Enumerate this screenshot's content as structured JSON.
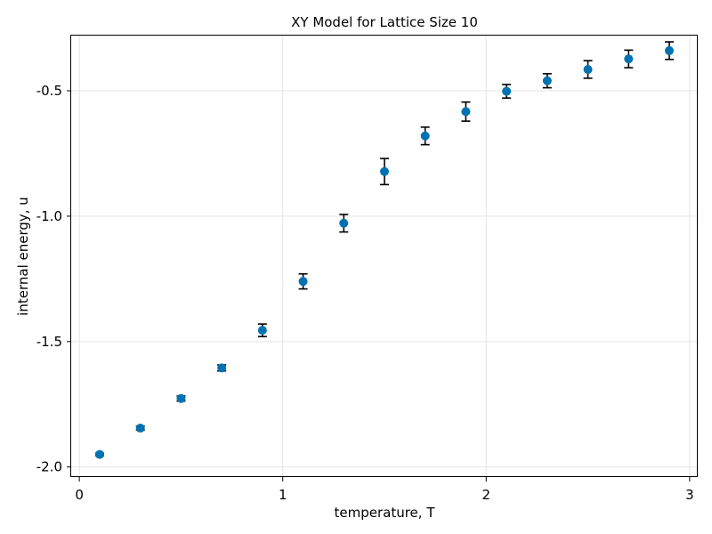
{
  "chart_data": {
    "type": "scatter",
    "title": "XY Model for Lattice Size 10",
    "xlabel": "temperature, T",
    "ylabel": "internal energy, u",
    "xlim": [
      -0.04,
      3.04
    ],
    "ylim": [
      -2.04,
      -0.28
    ],
    "xticks": [
      0,
      1,
      2,
      3
    ],
    "xtick_labels": [
      "0",
      "1",
      "2",
      "3"
    ],
    "yticks": [
      -2.0,
      -1.5,
      -1.0,
      -0.5
    ],
    "ytick_labels": [
      "-2.0",
      "-1.5",
      "-1.0",
      "-0.5"
    ],
    "grid": true,
    "marker_color": "#0072b2",
    "errorbar_color": "#000000",
    "points": [
      {
        "x": 0.1,
        "y": -1.95,
        "err": 0.005
      },
      {
        "x": 0.3,
        "y": -1.845,
        "err": 0.008
      },
      {
        "x": 0.5,
        "y": -1.727,
        "err": 0.01
      },
      {
        "x": 0.7,
        "y": -1.605,
        "err": 0.012
      },
      {
        "x": 0.9,
        "y": -1.455,
        "err": 0.025
      },
      {
        "x": 1.1,
        "y": -1.26,
        "err": 0.03
      },
      {
        "x": 1.3,
        "y": -1.028,
        "err": 0.035
      },
      {
        "x": 1.5,
        "y": -0.822,
        "err": 0.052
      },
      {
        "x": 1.7,
        "y": -0.68,
        "err": 0.035
      },
      {
        "x": 1.9,
        "y": -0.583,
        "err": 0.038
      },
      {
        "x": 2.1,
        "y": -0.502,
        "err": 0.027
      },
      {
        "x": 2.3,
        "y": -0.46,
        "err": 0.028
      },
      {
        "x": 2.5,
        "y": -0.415,
        "err": 0.035
      },
      {
        "x": 2.7,
        "y": -0.373,
        "err": 0.035
      },
      {
        "x": 2.9,
        "y": -0.34,
        "err": 0.035
      }
    ]
  }
}
